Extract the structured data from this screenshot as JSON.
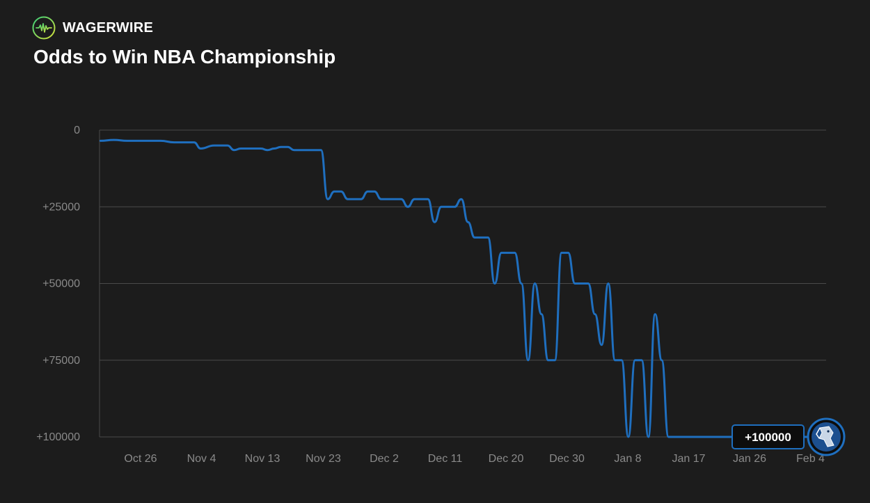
{
  "brand": {
    "name": "WAGERWIRE",
    "logo_icon": "pulse-circle-icon"
  },
  "chart_data": {
    "type": "line",
    "title": "Odds to Win NBA Championship",
    "xlabel": "",
    "ylabel": "",
    "y_reversed": true,
    "ylim": [
      0,
      100000
    ],
    "y_ticks": [
      0,
      25000,
      50000,
      75000,
      100000
    ],
    "y_tick_labels": [
      "0",
      "+25000",
      "+50000",
      "+75000",
      "+100000"
    ],
    "x_tick_labels": [
      "Oct 26",
      "Nov 4",
      "Nov 13",
      "Nov 23",
      "Dec 2",
      "Dec 11",
      "Dec 20",
      "Dec 30",
      "Jan 8",
      "Jan 17",
      "Jan 26",
      "Feb 4"
    ],
    "grid": true,
    "line_color": "#1f6fbf",
    "current_value_label": "+100000",
    "team_logo_icon": "mavericks-logo-icon",
    "series": [
      {
        "points": [
          [
            "Oct 20",
            3500
          ],
          [
            "Oct 22",
            3200
          ],
          [
            "Oct 24",
            3500
          ],
          [
            "Oct 27",
            3500
          ],
          [
            "Oct 29",
            3500
          ],
          [
            "Oct 31",
            4000
          ],
          [
            "Nov 3",
            4000
          ],
          [
            "Nov 4",
            6000
          ],
          [
            "Nov 6",
            5000
          ],
          [
            "Nov 8",
            5000
          ],
          [
            "Nov 9",
            6500
          ],
          [
            "Nov 10",
            6000
          ],
          [
            "Nov 13",
            6000
          ],
          [
            "Nov 14",
            6500
          ],
          [
            "Nov 15",
            6000
          ],
          [
            "Nov 16",
            5500
          ],
          [
            "Nov 17",
            5500
          ],
          [
            "Nov 18",
            6500
          ],
          [
            "Nov 21",
            6500
          ],
          [
            "Nov 22",
            6500
          ],
          [
            "Nov 23",
            22500
          ],
          [
            "Nov 24",
            20000
          ],
          [
            "Nov 25",
            20000
          ],
          [
            "Nov 26",
            22500
          ],
          [
            "Nov 28",
            22500
          ],
          [
            "Nov 29",
            20000
          ],
          [
            "Nov 30",
            20000
          ],
          [
            "Dec 1",
            22500
          ],
          [
            "Dec 4",
            22500
          ],
          [
            "Dec 5",
            25000
          ],
          [
            "Dec 6",
            22500
          ],
          [
            "Dec 8",
            22500
          ],
          [
            "Dec 9",
            30000
          ],
          [
            "Dec 10",
            25000
          ],
          [
            "Dec 12",
            25000
          ],
          [
            "Dec 13",
            22500
          ],
          [
            "Dec 14",
            30000
          ],
          [
            "Dec 15",
            35000
          ],
          [
            "Dec 17",
            35000
          ],
          [
            "Dec 18",
            50000
          ],
          [
            "Dec 19",
            40000
          ],
          [
            "Dec 21",
            40000
          ],
          [
            "Dec 22",
            50000
          ],
          [
            "Dec 23",
            75000
          ],
          [
            "Dec 24",
            50000
          ],
          [
            "Dec 25",
            60000
          ],
          [
            "Dec 26",
            75000
          ],
          [
            "Dec 27",
            75000
          ],
          [
            "Dec 28",
            40000
          ],
          [
            "Dec 29",
            40000
          ],
          [
            "Dec 30",
            50000
          ],
          [
            "Jan 1",
            50000
          ],
          [
            "Jan 2",
            60000
          ],
          [
            "Jan 3",
            70000
          ],
          [
            "Jan 4",
            50000
          ],
          [
            "Jan 5",
            75000
          ],
          [
            "Jan 6",
            75000
          ],
          [
            "Jan 7",
            100000
          ],
          [
            "Jan 8",
            75000
          ],
          [
            "Jan 9",
            75000
          ],
          [
            "Jan 10",
            100000
          ],
          [
            "Jan 11",
            60000
          ],
          [
            "Jan 12",
            75000
          ],
          [
            "Jan 13",
            100000
          ],
          [
            "Feb 1",
            100000
          ]
        ]
      }
    ]
  }
}
